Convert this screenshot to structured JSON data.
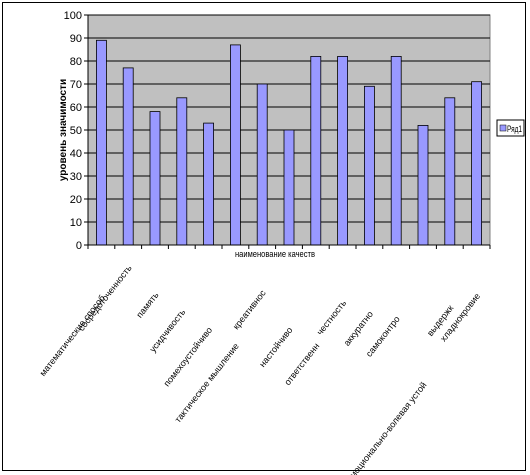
{
  "chart_data": {
    "type": "bar",
    "title": "",
    "xlabel": "наименование качеств",
    "ylabel": "уровень значимости",
    "ylim": [
      0,
      100
    ],
    "yticks": [
      0,
      10,
      20,
      30,
      40,
      50,
      60,
      70,
      80,
      90,
      100
    ],
    "grid": true,
    "legend_position": "right",
    "colors": {
      "bar_fill": "#9999ff",
      "bar_stroke": "#000000",
      "plot_background": "#c0c0c0",
      "grid": "#000000"
    },
    "categories": [
      "математические способ",
      "сосредоточенность",
      "память",
      "усидчивость",
      "помехоустойчиво",
      "тактическое мышление",
      "креативнос",
      "настойчиво",
      "ответственн",
      "честность",
      "аккуратно",
      "самоконтро",
      "эмоционально-волевая устой",
      "выдержк",
      "хладнокровие"
    ],
    "series": [
      {
        "name": "Ряд1",
        "values": [
          89,
          77,
          58,
          64,
          53,
          87,
          70,
          50,
          82,
          82,
          69,
          82,
          52,
          64,
          71
        ]
      }
    ]
  }
}
